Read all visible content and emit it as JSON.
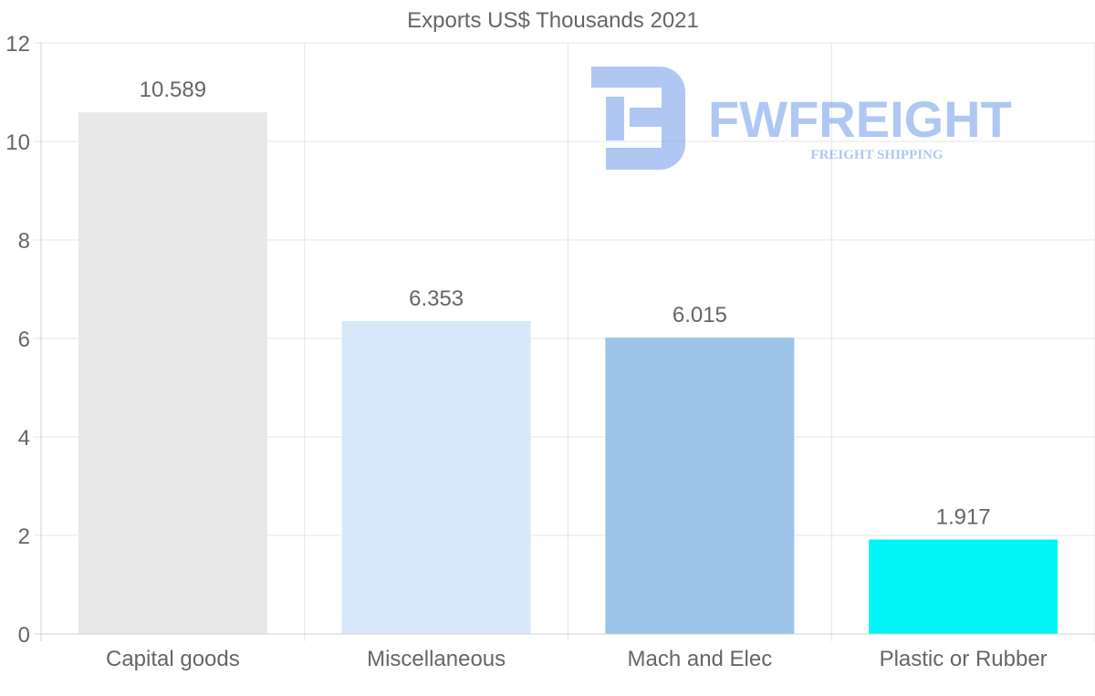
{
  "chart_data": {
    "type": "bar",
    "title": "Exports US$ Thousands 2021",
    "categories": [
      "Capital goods",
      "Miscellaneous",
      "Mach and Elec",
      "Plastic or Rubber"
    ],
    "values": [
      10.589,
      6.353,
      6.015,
      1.917
    ],
    "value_labels": [
      "10.589",
      "6.353",
      "6.015",
      "1.917"
    ],
    "colors": [
      "#e8e8e8",
      "#d6e8f9",
      "#9bc4e8",
      "#00f6f6"
    ],
    "xlabel": "",
    "ylabel": "",
    "ylim": [
      0,
      12
    ],
    "yticks": [
      0,
      2,
      4,
      6,
      8,
      10,
      12
    ],
    "grid": true,
    "legend": "none"
  },
  "watermark": {
    "brand": "FWFREIGHT",
    "tagline": "FREIGHT SHIPPING",
    "color": "#6f9ae8"
  }
}
